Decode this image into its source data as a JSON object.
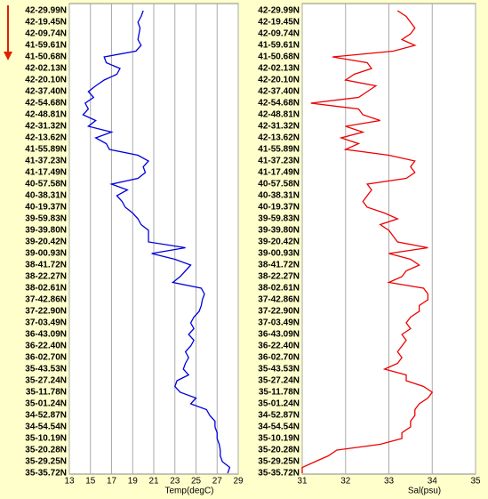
{
  "chart_data": [
    {
      "type": "line",
      "xlabel": "Temp(degC)",
      "color": "#0000dd",
      "xlim": [
        13,
        29
      ],
      "xticks": [
        13,
        15,
        17,
        19,
        21,
        23,
        25,
        27,
        29
      ],
      "grid": true,
      "categories": [
        "42-29.99N",
        null,
        "42-19.45N",
        null,
        "42-09.74N",
        null,
        "41-59.61N",
        null,
        "41-50.68N",
        null,
        "42-02.13N",
        null,
        "42-20.10N",
        null,
        "42-37.40N",
        null,
        "42-54.68N",
        null,
        "42-48.81N",
        null,
        "42-31.32N",
        null,
        "42-13.62N",
        null,
        "41-55.89N",
        null,
        "41-37.23N",
        null,
        "41-17.49N",
        null,
        "40-57.58N",
        null,
        "40-38.31N",
        null,
        "40-19.37N",
        null,
        "39-59.83N",
        null,
        "39-39.80N",
        null,
        "39-20.42N",
        null,
        "39-00.93N",
        null,
        "38-41.72N",
        null,
        "38-22.27N",
        null,
        "38-02.61N",
        null,
        "37-42.86N",
        null,
        "37-22.90N",
        null,
        "37-03.49N",
        null,
        "36-43.09N",
        null,
        "36-22.40N",
        null,
        "36-02.70N",
        null,
        "35-43.53N",
        null,
        "35-27.24N",
        null,
        "35-11.78N",
        null,
        "35-01.24N",
        null,
        "34-52.87N",
        null,
        "34-54.54N",
        null,
        "35-10.19N",
        null,
        "35-20.28N",
        null,
        "35-29.25N",
        null,
        "35-35.72N"
      ],
      "values": [
        20.0,
        19.8,
        19.5,
        19.7,
        19.6,
        19.5,
        19.8,
        19.3,
        16.3,
        16.5,
        17.8,
        17.5,
        16.3,
        15.5,
        14.8,
        15.3,
        14.5,
        14.8,
        14.3,
        15.5,
        14.8,
        17.0,
        15.5,
        16.5,
        16.8,
        19.5,
        20.5,
        20.0,
        20.2,
        19.5,
        17.0,
        18.5,
        17.5,
        18.0,
        18.3,
        19.0,
        19.5,
        19.8,
        20.5,
        20.5,
        20.5,
        24.0,
        20.8,
        23.0,
        24.5,
        24.0,
        23.5,
        22.8,
        25.5,
        25.8,
        25.6,
        25.5,
        25.3,
        24.8,
        24.5,
        24.8,
        24.3,
        24.8,
        24.5,
        24.0,
        24.3,
        24.0,
        23.8,
        24.3,
        23.2,
        23.0,
        23.5,
        25.0,
        24.5,
        26.0,
        26.3,
        26.8,
        26.8,
        27.0,
        27.0,
        27.2,
        27.3,
        27.3,
        27.5,
        28.2,
        28.0
      ]
    },
    {
      "type": "line",
      "xlabel": "Sal(psu)",
      "color": "#ee0000",
      "xlim": [
        31,
        35
      ],
      "xticks": [
        31,
        32,
        33,
        34,
        35
      ],
      "grid": true,
      "categories": [
        "42-29.99N",
        null,
        "42-19.45N",
        null,
        "42-09.74N",
        null,
        "41-59.61N",
        null,
        "41-50.68N",
        null,
        "42-02.13N",
        null,
        "42-20.10N",
        null,
        "42-37.40N",
        null,
        "42-54.68N",
        null,
        "42-48.81N",
        null,
        "42-31.32N",
        null,
        "42-13.62N",
        null,
        "41-55.89N",
        null,
        "41-37.23N",
        null,
        "41-17.49N",
        null,
        "40-57.58N",
        null,
        "40-38.31N",
        null,
        "40-19.37N",
        null,
        "39-59.83N",
        null,
        "39-39.80N",
        null,
        "39-20.42N",
        null,
        "39-00.93N",
        null,
        "38-41.72N",
        null,
        "38-22.27N",
        null,
        "38-02.61N",
        null,
        "37-42.86N",
        null,
        "37-22.90N",
        null,
        "37-03.49N",
        null,
        "36-43.09N",
        null,
        "36-22.40N",
        null,
        "36-02.70N",
        null,
        "35-43.53N",
        null,
        "35-27.24N",
        null,
        "35-11.78N",
        null,
        "35-01.24N",
        null,
        "34-52.87N",
        null,
        "34-54.54N",
        null,
        "35-10.19N",
        null,
        "35-20.28N",
        null,
        "35-29.25N",
        null,
        "35-35.72N"
      ],
      "values": [
        33.2,
        33.4,
        33.5,
        33.6,
        33.5,
        33.3,
        33.6,
        33.1,
        31.7,
        32.5,
        32.6,
        32.2,
        32.0,
        32.7,
        32.5,
        32.3,
        31.2,
        32.3,
        32.4,
        32.8,
        32.0,
        32.4,
        31.9,
        32.3,
        32.0,
        33.0,
        33.6,
        33.5,
        33.6,
        33.4,
        32.5,
        32.6,
        32.5,
        32.4,
        32.5,
        32.9,
        33.2,
        32.8,
        33.0,
        33.1,
        33.2,
        33.9,
        33.0,
        33.5,
        33.7,
        33.4,
        33.3,
        33.0,
        33.8,
        33.9,
        33.9,
        33.7,
        33.7,
        33.5,
        33.4,
        33.5,
        33.3,
        33.4,
        33.3,
        33.2,
        33.3,
        33.2,
        32.9,
        33.4,
        33.4,
        33.8,
        34.0,
        33.9,
        33.7,
        33.6,
        33.6,
        33.5,
        33.5,
        33.3,
        33.3,
        32.8,
        31.8,
        31.6,
        31.3,
        31.0,
        31.0
      ]
    }
  ]
}
